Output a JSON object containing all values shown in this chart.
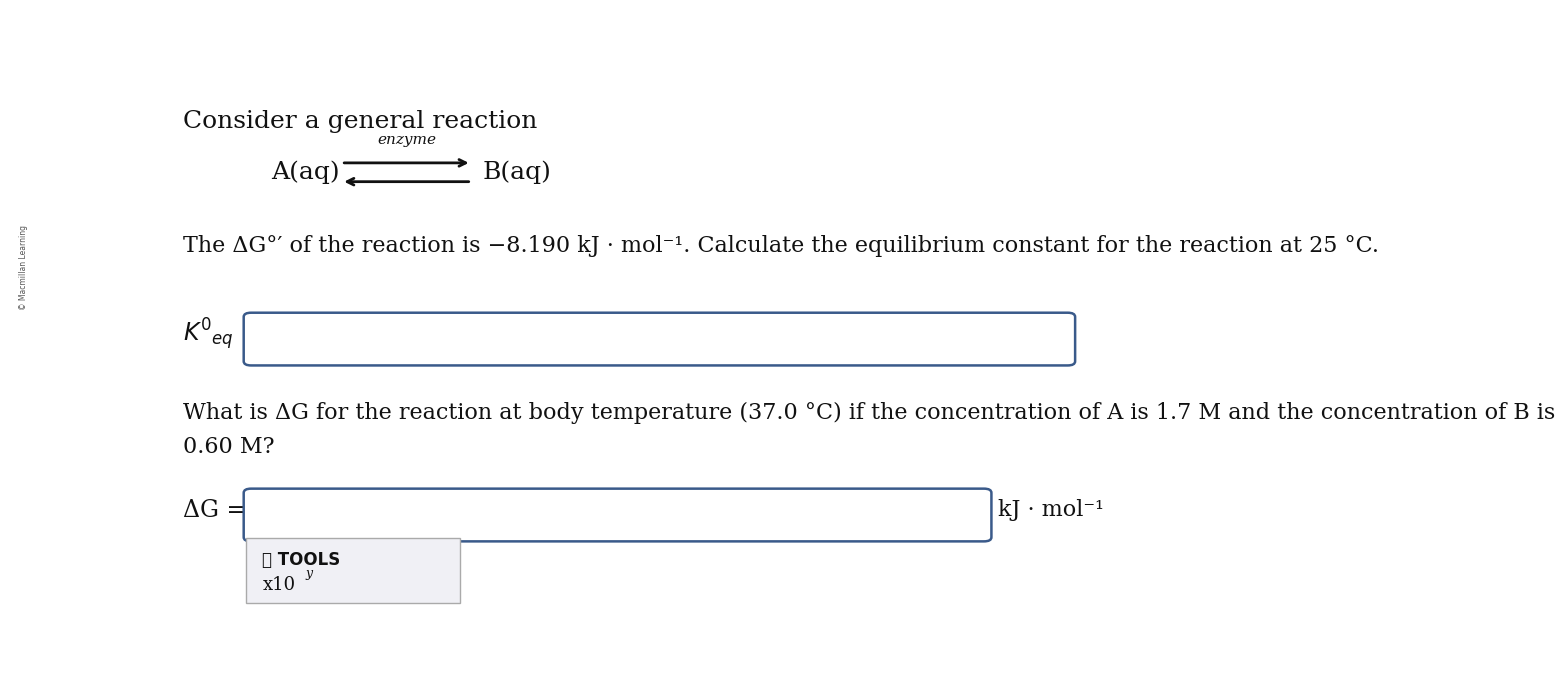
{
  "background_color": "#ffffff",
  "title_text": "Consider a general reaction",
  "title_fontsize": 18,
  "reaction_enzyme": "enzyme",
  "reaction_A": "A(aq)",
  "reaction_B": "B(aq)",
  "problem_text1": "The ΔG°′ of the reaction is −8.190 kJ · mol⁻¹. Calculate the equilibrium constant for the reaction at 25 °C.",
  "problem_text1_fontsize": 16,
  "problem_text2_line1": "What is ΔG for the reaction at body temperature (37.0 °C) if the concentration of A is 1.7 M and the concentration of B is",
  "problem_text2_line2": "0.60 M?",
  "problem_text2_fontsize": 16,
  "keq_label_fontsize": 17,
  "dg_label_fontsize": 17,
  "dg_unit": "kJ · mol⁻¹",
  "dg_unit_fontsize": 16,
  "tools_text_line1": "⚒ TOOLS",
  "tools_text_line2": "x10",
  "tools_superscript": "y",
  "box_edge_color": "#3a5a8a",
  "tools_bg_color": "#f0f0f5",
  "tools_box_edge_color": "#aaaaaa",
  "text_color": "#111111",
  "sidebar_text": "© Macmillan Learning",
  "sidebar_color": "#cccccc",
  "font_family": "DejaVu Serif"
}
